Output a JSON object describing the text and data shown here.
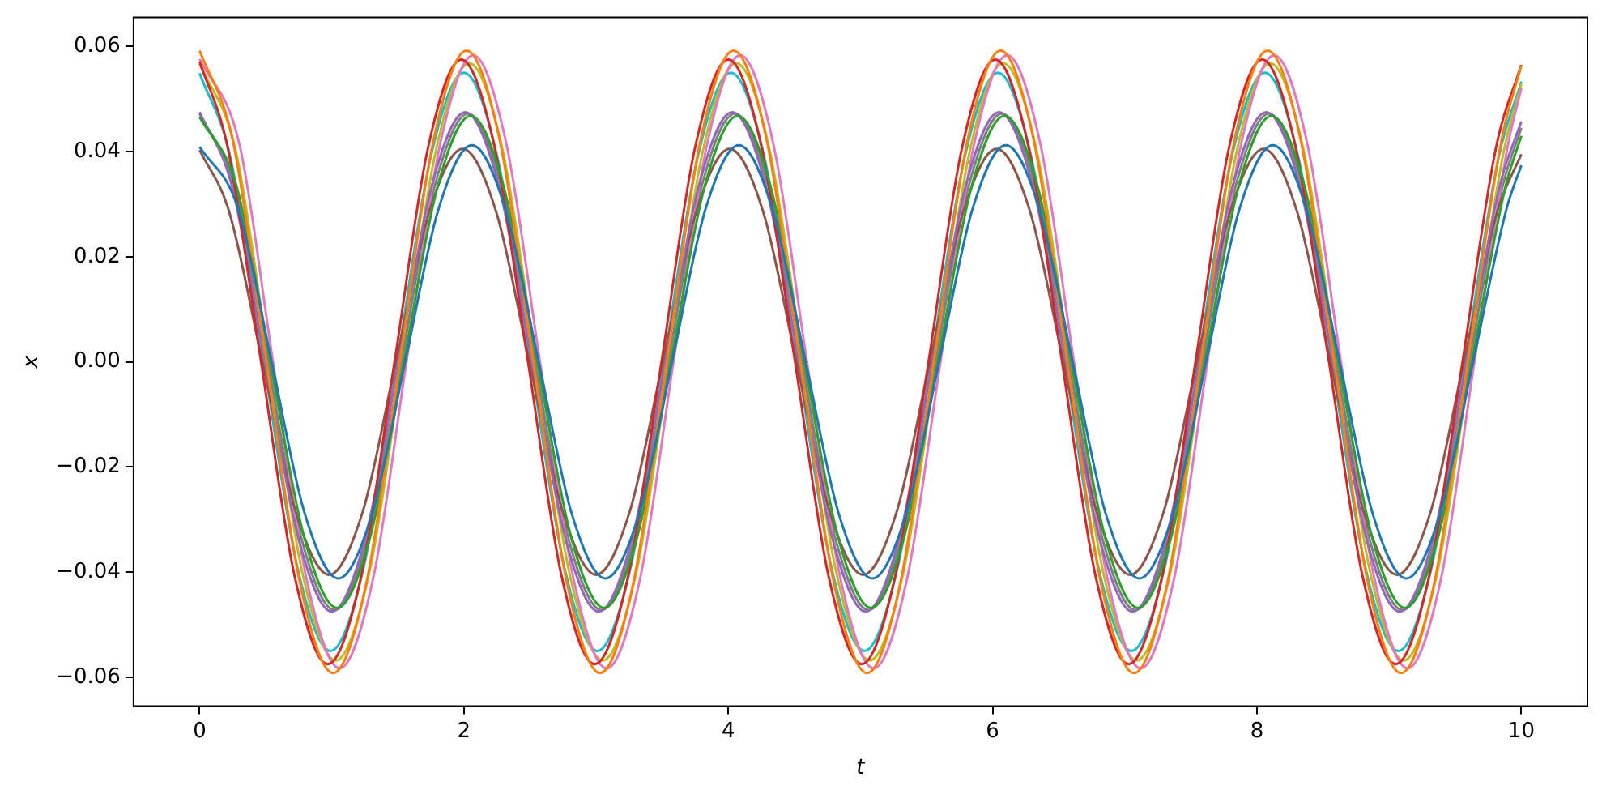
{
  "chart_data": {
    "type": "line",
    "xlabel": "t",
    "ylabel": "x",
    "xlim": [
      -0.5,
      10.5
    ],
    "xticks": [
      0,
      2,
      4,
      6,
      8,
      10
    ],
    "ylim": [
      -0.0655,
      0.0655
    ],
    "yticks": [
      {
        "value": -0.06,
        "label": "−0.06"
      },
      {
        "value": -0.04,
        "label": "−0.04"
      },
      {
        "value": -0.02,
        "label": "−0.02"
      },
      {
        "value": 0,
        "label": "0.00"
      },
      {
        "value": 0.02,
        "label": "0.02"
      },
      {
        "value": 0.04,
        "label": "0.04"
      },
      {
        "value": 0.06,
        "label": "0.06"
      }
    ],
    "series": [
      {
        "color": "#1f77b4",
        "x": [
          0,
          0.293,
          0.545,
          0.798,
          1.05,
          1.303,
          1.555,
          1.808,
          2.06,
          2.313,
          2.565,
          2.818,
          3.07,
          3.323,
          3.575,
          3.828,
          4.08,
          4.333,
          4.585,
          4.838,
          5.09,
          5.343,
          5.595,
          5.848,
          6.1,
          6.353,
          6.605,
          6.858,
          7.11,
          7.363,
          7.615,
          7.868,
          8.12,
          8.373,
          8.625,
          8.878,
          9.13,
          9.383,
          9.635,
          9.888,
          10
        ],
        "values": [
          0.0409,
          0.0291,
          0,
          -0.0291,
          -0.0412,
          -0.0291,
          0,
          0.0291,
          0.0412,
          0.0291,
          0,
          -0.0291,
          -0.0412,
          -0.0291,
          0,
          0.0291,
          0.0412,
          0.0291,
          0,
          -0.0291,
          -0.0412,
          -0.0291,
          0,
          0.0291,
          0.0412,
          0.0291,
          0,
          -0.0291,
          -0.0412,
          -0.0291,
          0,
          0.0291,
          0.0412,
          0.0291,
          0,
          -0.0291,
          -0.0412,
          -0.0291,
          0,
          0.0291,
          0.0374
        ]
      },
      {
        "color": "#ff7f0e",
        "x": [
          0,
          0.253,
          0.505,
          0.758,
          1.01,
          1.263,
          1.515,
          1.768,
          2.02,
          2.273,
          2.525,
          2.778,
          3.03,
          3.283,
          3.535,
          3.788,
          4.04,
          4.293,
          4.545,
          4.798,
          5.05,
          5.303,
          5.555,
          5.808,
          6.06,
          6.313,
          6.565,
          6.818,
          7.07,
          7.323,
          7.575,
          7.828,
          8.08,
          8.333,
          8.585,
          8.838,
          9.09,
          9.343,
          9.595,
          9.848,
          10
        ],
        "values": [
          0.0592,
          0.0419,
          0,
          -0.0419,
          -0.0592,
          -0.0419,
          0,
          0.0419,
          0.0592,
          0.0419,
          0,
          -0.0419,
          -0.0592,
          -0.0419,
          0,
          0.0419,
          0.0592,
          0.0419,
          0,
          -0.0419,
          -0.0592,
          -0.0419,
          0,
          0.0419,
          0.0592,
          0.0419,
          0,
          -0.0419,
          -0.0592,
          -0.0419,
          0,
          0.0419,
          0.0592,
          0.0419,
          0,
          -0.0419,
          -0.0592,
          -0.0419,
          0,
          0.0419,
          0.0564
        ]
      },
      {
        "color": "#2ca02c",
        "x": [
          0,
          0.283,
          0.535,
          0.788,
          1.04,
          1.293,
          1.545,
          1.798,
          2.05,
          2.303,
          2.555,
          2.808,
          3.06,
          3.313,
          3.565,
          3.818,
          4.07,
          4.323,
          4.575,
          4.828,
          5.08,
          5.333,
          5.585,
          5.838,
          6.09,
          6.343,
          6.595,
          6.848,
          7.1,
          7.353,
          7.605,
          7.858,
          8.11,
          8.363,
          8.615,
          8.868,
          9.12,
          9.373,
          9.625,
          9.878,
          10
        ],
        "values": [
          0.0466,
          0.0331,
          0,
          -0.0331,
          -0.0468,
          -0.0331,
          0,
          0.0331,
          0.0468,
          0.0331,
          0,
          -0.0331,
          -0.0468,
          -0.0331,
          0,
          0.0331,
          0.0468,
          0.0331,
          0,
          -0.0331,
          -0.0468,
          -0.0331,
          0,
          0.0331,
          0.0468,
          0.0331,
          0,
          -0.0331,
          -0.0468,
          -0.0331,
          0,
          0.0331,
          0.0468,
          0.0331,
          0,
          -0.0331,
          -0.0468,
          -0.0331,
          0,
          0.0331,
          0.043
        ]
      },
      {
        "color": "#d62728",
        "x": [
          0,
          0.213,
          0.465,
          0.718,
          0.97,
          1.223,
          1.475,
          1.728,
          1.98,
          2.233,
          2.485,
          2.738,
          2.99,
          3.243,
          3.495,
          3.748,
          4,
          4.253,
          4.505,
          4.758,
          5.01,
          5.263,
          5.515,
          5.768,
          6.02,
          6.273,
          6.525,
          6.778,
          7.03,
          7.283,
          7.535,
          7.788,
          8.04,
          8.293,
          8.545,
          8.798,
          9.05,
          9.303,
          9.555,
          9.808,
          10
        ],
        "values": [
          0.0571,
          0.0407,
          0,
          -0.0407,
          -0.0575,
          -0.0407,
          0,
          0.0407,
          0.0575,
          0.0407,
          0,
          -0.0407,
          -0.0575,
          -0.0407,
          0,
          0.0407,
          0.0575,
          0.0407,
          0,
          -0.0407,
          -0.0575,
          -0.0407,
          0,
          0.0407,
          0.0575,
          0.0407,
          0,
          -0.0407,
          -0.0575,
          -0.0407,
          0,
          0.0407,
          0.0575,
          0.0407,
          0,
          -0.0407,
          -0.0575,
          -0.0407,
          0,
          0.0407,
          0.0565
        ]
      },
      {
        "color": "#9467bd",
        "x": [
          0,
          0.243,
          0.495,
          0.748,
          1,
          1.253,
          1.505,
          1.758,
          2.01,
          2.263,
          2.515,
          2.768,
          3.02,
          3.273,
          3.525,
          3.778,
          4.03,
          4.283,
          4.535,
          4.788,
          5.04,
          5.293,
          5.545,
          5.798,
          6.05,
          6.303,
          6.555,
          6.808,
          7.06,
          7.313,
          7.565,
          7.818,
          8.07,
          8.323,
          8.575,
          8.828,
          9.08,
          9.333,
          9.585,
          9.838,
          10
        ],
        "values": [
          0.0475,
          0.0336,
          0,
          -0.0336,
          -0.0475,
          -0.0336,
          0,
          0.0336,
          0.0475,
          0.0336,
          0,
          -0.0336,
          -0.0475,
          -0.0336,
          0,
          0.0336,
          0.0475,
          0.0336,
          0,
          -0.0336,
          -0.0475,
          -0.0336,
          0,
          0.0336,
          0.0475,
          0.0336,
          0,
          -0.0336,
          -0.0475,
          -0.0336,
          0,
          0.0336,
          0.0475,
          0.0336,
          0,
          -0.0336,
          -0.0475,
          -0.0336,
          0,
          0.0336,
          0.0457
        ]
      },
      {
        "color": "#8c564b",
        "x": [
          0,
          0.223,
          0.475,
          0.728,
          0.98,
          1.233,
          1.485,
          1.738,
          1.99,
          2.243,
          2.495,
          2.748,
          3,
          3.253,
          3.505,
          3.758,
          4.01,
          4.263,
          4.515,
          4.768,
          5.02,
          5.273,
          5.525,
          5.778,
          6.03,
          6.283,
          6.535,
          6.788,
          7.04,
          7.293,
          7.545,
          7.798,
          8.05,
          8.303,
          8.555,
          8.808,
          9.06,
          9.313,
          9.565,
          9.818,
          10
        ],
        "values": [
          0.0403,
          0.0286,
          0,
          -0.0286,
          -0.0405,
          -0.0286,
          0,
          0.0286,
          0.0405,
          0.0286,
          0,
          -0.0286,
          -0.0405,
          -0.0286,
          0,
          0.0286,
          0.0405,
          0.0286,
          0,
          -0.0286,
          -0.0405,
          -0.0286,
          0,
          0.0286,
          0.0405,
          0.0286,
          0,
          -0.0286,
          -0.0405,
          -0.0286,
          0,
          0.0286,
          0.0405,
          0.0286,
          0,
          -0.0286,
          -0.0405,
          -0.0286,
          0,
          0.0286,
          0.0395
        ]
      },
      {
        "color": "#e377c2",
        "x": [
          0,
          0.303,
          0.555,
          0.808,
          1.06,
          1.313,
          1.565,
          1.818,
          2.07,
          2.323,
          2.575,
          2.828,
          3.08,
          3.333,
          3.585,
          3.838,
          4.09,
          4.343,
          4.595,
          4.848,
          5.1,
          5.353,
          5.605,
          5.858,
          6.11,
          6.363,
          6.615,
          6.868,
          7.12,
          7.373,
          7.625,
          7.878,
          8.13,
          8.383,
          8.635,
          8.888,
          9.14,
          9.393,
          9.645,
          9.898,
          10
        ],
        "values": [
          0.0576,
          0.0412,
          0,
          -0.0412,
          -0.0583,
          -0.0412,
          0,
          0.0412,
          0.0583,
          0.0412,
          0,
          -0.0412,
          -0.0583,
          -0.0412,
          0,
          0.0412,
          0.0583,
          0.0412,
          0,
          -0.0412,
          -0.0583,
          -0.0412,
          0,
          0.0412,
          0.0583,
          0.0412,
          0,
          -0.0412,
          -0.0583,
          -0.0412,
          0,
          0.0412,
          0.0583,
          0.0412,
          0,
          -0.0412,
          -0.0583,
          -0.0412,
          0,
          0.0412,
          0.0521
        ]
      },
      {
        "color": "#7f7f7f",
        "x": [
          0,
          0.263,
          0.515,
          0.768,
          1.02,
          1.273,
          1.525,
          1.778,
          2.03,
          2.283,
          2.535,
          2.788,
          3.04,
          3.293,
          3.545,
          3.798,
          4.05,
          4.303,
          4.555,
          4.808,
          5.06,
          5.313,
          5.565,
          5.818,
          6.07,
          6.323,
          6.575,
          6.828,
          7.08,
          7.333,
          7.585,
          7.838,
          8.09,
          8.343,
          8.595,
          8.848,
          9.1,
          9.353,
          9.605,
          9.858,
          10
        ],
        "values": [
          0.0472,
          0.0334,
          0,
          -0.0334,
          -0.0472,
          -0.0334,
          0,
          0.0334,
          0.0472,
          0.0334,
          0,
          -0.0334,
          -0.0472,
          -0.0334,
          0,
          0.0334,
          0.0472,
          0.0334,
          0,
          -0.0334,
          -0.0472,
          -0.0334,
          0,
          0.0334,
          0.0472,
          0.0334,
          0,
          -0.0334,
          -0.0472,
          -0.0334,
          0,
          0.0334,
          0.0472,
          0.0334,
          0,
          -0.0334,
          -0.0472,
          -0.0334,
          0,
          0.0334,
          0.0445
        ]
      },
      {
        "color": "#bcbd22",
        "x": [
          0,
          0.273,
          0.525,
          0.778,
          1.03,
          1.283,
          1.535,
          1.788,
          2.04,
          2.293,
          2.545,
          2.798,
          3.05,
          3.303,
          3.555,
          3.808,
          4.06,
          4.313,
          4.565,
          4.818,
          5.07,
          5.323,
          5.575,
          5.828,
          6.08,
          6.333,
          6.585,
          6.838,
          7.09,
          7.343,
          7.595,
          7.848,
          8.1,
          8.353,
          8.605,
          8.858,
          9.11,
          9.363,
          9.615,
          9.868,
          10
        ],
        "values": [
          0.0567,
          0.0402,
          0,
          -0.0402,
          -0.0568,
          -0.0402,
          0,
          0.0402,
          0.0568,
          0.0402,
          0,
          -0.0402,
          -0.0568,
          -0.0402,
          0,
          0.0402,
          0.0568,
          0.0402,
          0,
          -0.0402,
          -0.0568,
          -0.0402,
          0,
          0.0402,
          0.0568,
          0.0402,
          0,
          -0.0402,
          -0.0568,
          -0.0402,
          0,
          0.0402,
          0.0568,
          0.0402,
          0,
          -0.0402,
          -0.0568,
          -0.0402,
          0,
          0.0402,
          0.0529
        ]
      },
      {
        "color": "#17becf",
        "x": [
          0,
          0.233,
          0.485,
          0.738,
          0.99,
          1.243,
          1.495,
          1.748,
          2,
          2.253,
          2.505,
          2.758,
          3.01,
          3.263,
          3.515,
          3.768,
          4.02,
          4.273,
          4.525,
          4.778,
          5.03,
          5.283,
          5.535,
          5.788,
          6.04,
          6.293,
          6.545,
          6.798,
          7.05,
          7.303,
          7.555,
          7.808,
          8.06,
          8.313,
          8.565,
          8.818,
          9.07,
          9.323,
          9.575,
          9.828,
          10
        ],
        "values": [
          0.0549,
          0.0389,
          0,
          -0.0389,
          -0.055,
          -0.0389,
          0,
          0.0389,
          0.055,
          0.0389,
          0,
          -0.0389,
          -0.055,
          -0.0389,
          0,
          0.0389,
          0.055,
          0.0389,
          0,
          -0.0389,
          -0.055,
          -0.0389,
          0,
          0.0389,
          0.055,
          0.0389,
          0,
          -0.0389,
          -0.055,
          -0.0389,
          0,
          0.0389,
          0.055,
          0.0389,
          0,
          -0.0389,
          -0.055,
          -0.0389,
          0,
          0.0389,
          0.0533
        ]
      }
    ]
  }
}
